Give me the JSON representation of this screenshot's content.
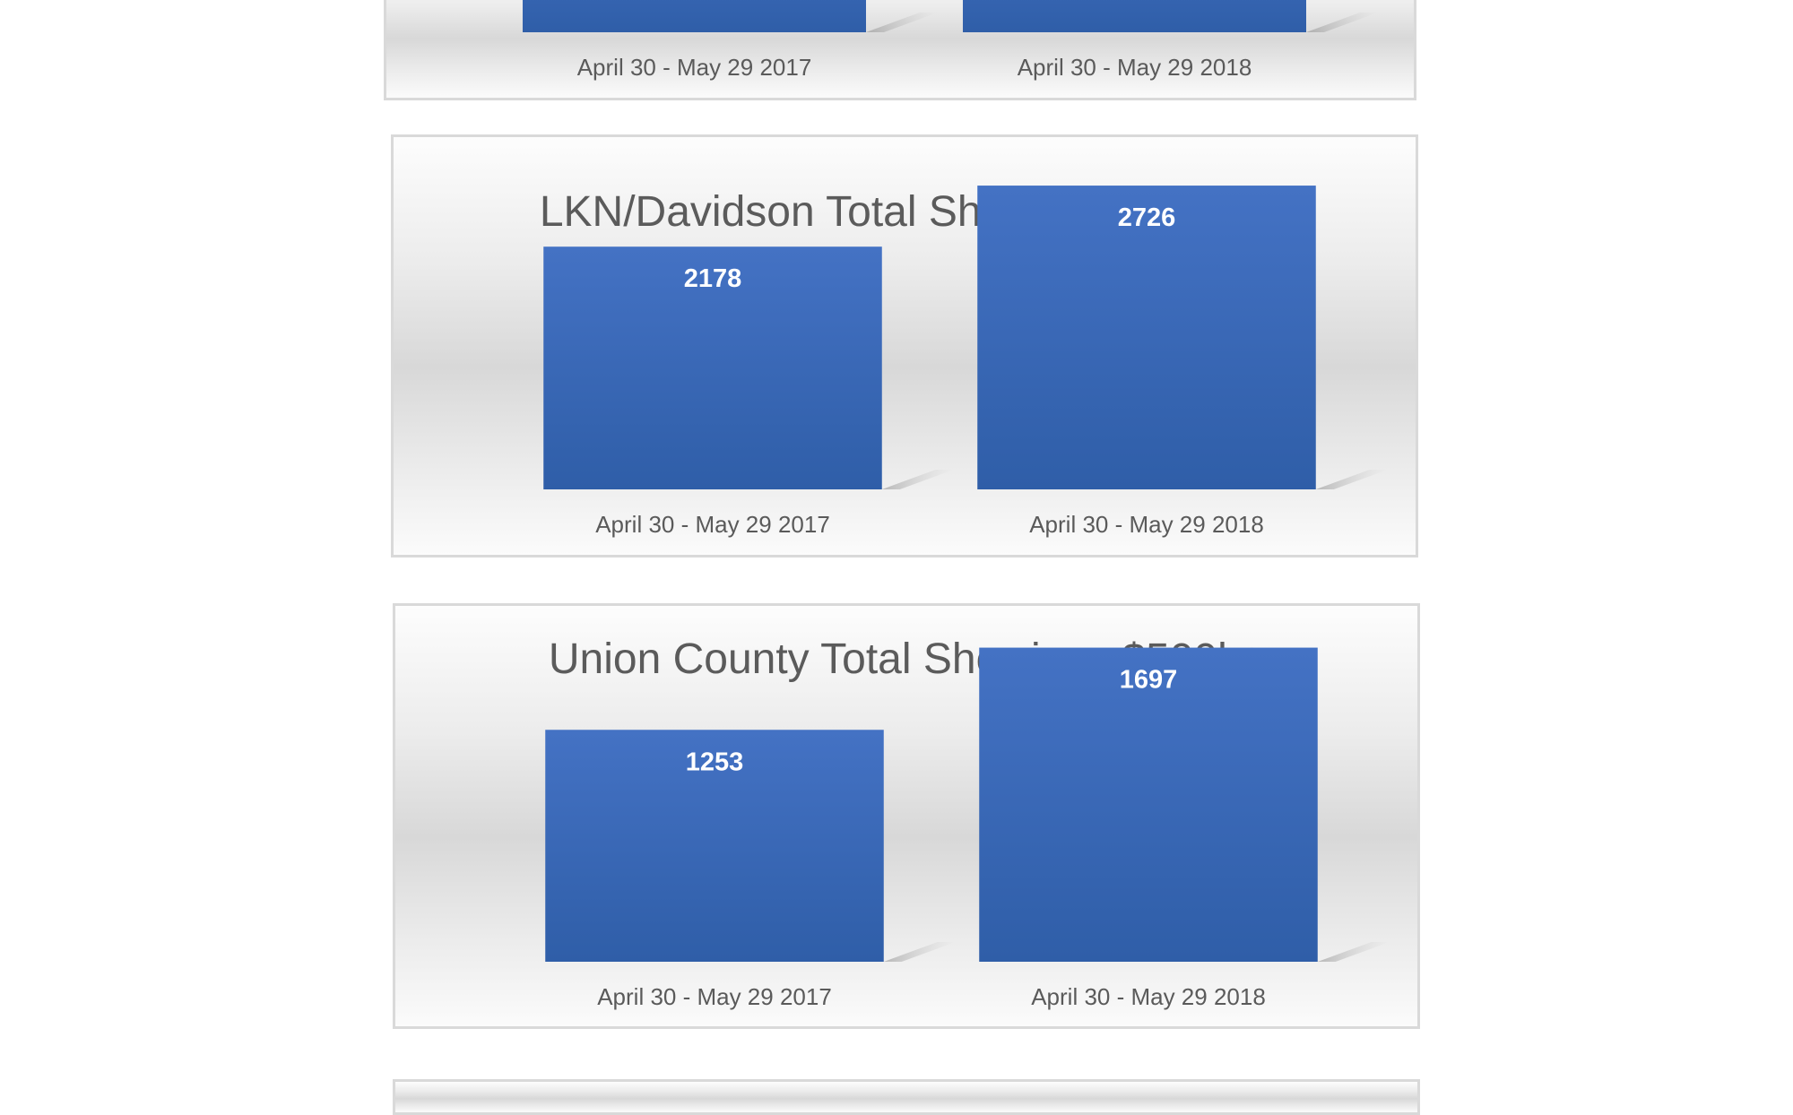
{
  "colors": {
    "bar_top": "#4472c4",
    "bar_bottom": "#2f5ea8",
    "panel_border": "#d9d9d9",
    "title_text": "#5b5b5b",
    "label_text": "#5a5a5a"
  },
  "chart_data": [
    {
      "type": "bar",
      "title": "",
      "categories": [
        "April 30 - May 29 2017",
        "April 30 - May 29 2018"
      ],
      "values": [
        null,
        null
      ],
      "ylim": [
        0,
        3000
      ],
      "grid": false,
      "partial": "top-cropped"
    },
    {
      "type": "bar",
      "title": "LKN/Davidson Total Showings $500k+",
      "categories": [
        "April 30 - May 29 2017",
        "April 30 - May 29 2018"
      ],
      "values": [
        2178,
        2726
      ],
      "ylim": [
        0,
        3000
      ],
      "grid": false
    },
    {
      "type": "bar",
      "title": "Union County Total Showings $500k+",
      "categories": [
        "April 30 - May 29 2017",
        "April 30 - May 29 2018"
      ],
      "values": [
        1253,
        1697
      ],
      "ylim": [
        0,
        2000
      ],
      "grid": false
    }
  ]
}
